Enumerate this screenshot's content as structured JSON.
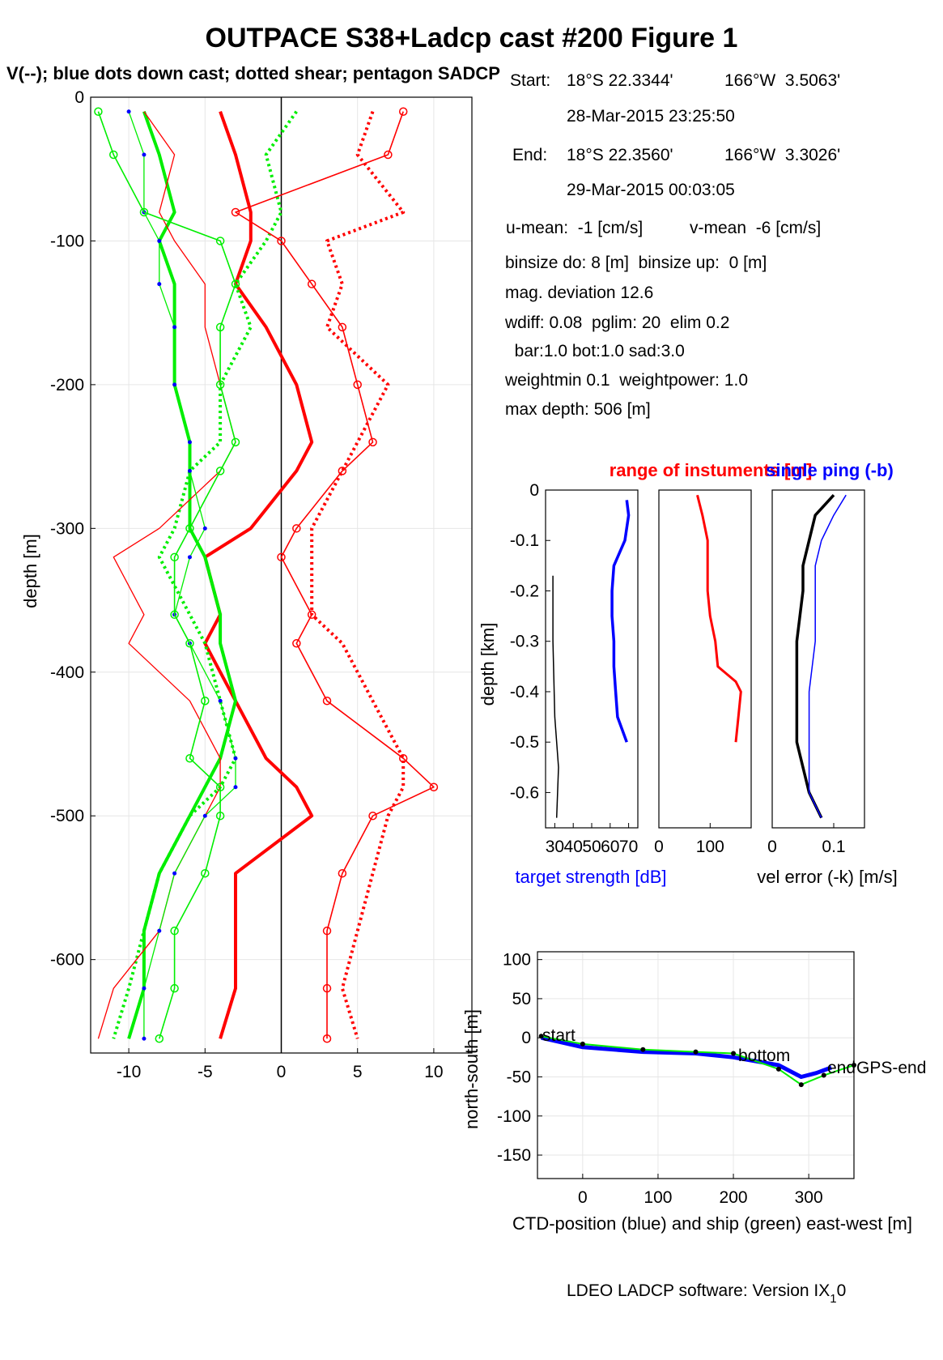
{
  "title": "OUTPACE S38+Ladcp cast #200  Figure 1",
  "subtitle": "V(--); blue dots down cast; dotted shear; pentagon SADCP",
  "info": {
    "start_label": "Start:",
    "start_lat": "18°S 22.3344'",
    "start_lon": "166°W  3.5063'",
    "start_time": "28-Mar-2015 23:25:50",
    "end_label": "End:",
    "end_lat": "18°S 22.3560'",
    "end_lon": "166°W  3.3026'",
    "end_time": "29-Mar-2015 00:03:05",
    "u_mean": "u-mean:  -1 [cm/s]",
    "v_mean": "v-mean  -6 [cm/s]",
    "binsize": "binsize do: 8 [m]  binsize up:  0 [m]",
    "mag_dev": "mag. deviation 12.6",
    "wdiff": "wdiff: 0.08  pglim: 20  elim 0.2",
    "weights": "  bar:1.0 bot:1.0 sad:3.0",
    "weightmin": "weightmin 0.1  weightpower: 1.0",
    "max_depth": "max depth: 506 [m]"
  },
  "footer": "LDEO LADCP software: Version IX",
  "footer_sub": "1",
  "footer_tail": "0",
  "colors": {
    "red": "#ff0000",
    "green": "#00ee00",
    "blue": "#0000ff",
    "black": "#000000",
    "grid": "#e6e6e6"
  },
  "chart_data": [
    {
      "type": "line",
      "id": "velocity_profile",
      "xlabel": "",
      "ylabel": "depth [m]",
      "xlim": [
        -12.5,
        12.5
      ],
      "ylim": [
        -665,
        0
      ],
      "xticks": [
        -10,
        -5,
        0,
        5,
        10
      ],
      "yticks": [
        0,
        -100,
        -200,
        -300,
        -400,
        -500,
        -600
      ],
      "grid": true,
      "depth": [
        -10,
        -40,
        -80,
        -100,
        -130,
        -160,
        -200,
        -240,
        -260,
        -300,
        -320,
        -360,
        -380,
        -420,
        -460,
        -480,
        -500,
        -540,
        -580,
        -620,
        -655
      ],
      "series": [
        {
          "name": "U",
          "color": "red",
          "style": "thick",
          "x": [
            -4,
            -3,
            -2,
            -2,
            -3,
            -1,
            1,
            2,
            1,
            -2,
            -5,
            -4,
            -5,
            -3,
            -1,
            1,
            2,
            -3,
            -3,
            -3,
            -4
          ]
        },
        {
          "name": "V",
          "color": "green",
          "style": "thick",
          "x": [
            -9,
            -8,
            -7,
            -8,
            -7,
            -7,
            -7,
            -6,
            -6,
            -6,
            -5,
            -4,
            -4,
            -3,
            -4,
            -5,
            -6,
            -8,
            -9,
            -9,
            -10
          ]
        },
        {
          "name": "U shear",
          "color": "red",
          "style": "dotted",
          "x": [
            6,
            5,
            8,
            3,
            4,
            3,
            7,
            5,
            4,
            2,
            2,
            2,
            4,
            6,
            8,
            8,
            7,
            6,
            5,
            4,
            5
          ]
        },
        {
          "name": "V shear",
          "color": "green",
          "style": "dotted",
          "x": [
            1,
            -1,
            0,
            -1,
            -3,
            -2,
            -4,
            -4,
            -6,
            -7,
            -8,
            -6,
            -5,
            -4,
            -3,
            -4,
            -6,
            -8,
            -9,
            -10,
            -11
          ]
        },
        {
          "name": "U down",
          "color": "red",
          "style": "thin",
          "x": [
            -9,
            -7,
            -8,
            -7,
            -5,
            -5,
            -4,
            -3,
            -4,
            -8,
            -11,
            -9,
            -10,
            -6,
            -4,
            -4,
            -5,
            -7,
            -8,
            -11,
            -12
          ]
        },
        {
          "name": "V down",
          "color": "green",
          "style": "thin",
          "x": [
            -10,
            -9,
            -9,
            -8,
            -8,
            -7,
            -7,
            -6,
            -6,
            -5,
            -6,
            -7,
            -6,
            -4,
            -3,
            -3,
            -5,
            -7,
            -8,
            -9,
            -9
          ]
        },
        {
          "name": "U SADCP",
          "color": "red",
          "style": "star",
          "x": [
            8,
            7,
            -3,
            0,
            2,
            4,
            5,
            6,
            4,
            1,
            0,
            2,
            1,
            3,
            8,
            10,
            6,
            4,
            3,
            3,
            3
          ]
        },
        {
          "name": "V SADCP",
          "color": "green",
          "style": "star",
          "x": [
            -12,
            -11,
            -9,
            -4,
            -3,
            -4,
            -4,
            -3,
            -4,
            -6,
            -7,
            -7,
            -6,
            -5,
            -6,
            -4,
            -4,
            -5,
            -7,
            -7,
            -8
          ]
        }
      ]
    },
    {
      "type": "line",
      "id": "target_strength",
      "xlabel": "target strength [dB]",
      "ylabel": "depth [km]",
      "xlim": [
        25,
        75
      ],
      "ylim": [
        -0.67,
        0
      ],
      "xticks": [
        30,
        40,
        50,
        60,
        70
      ],
      "yticks": [
        0,
        -0.1,
        -0.2,
        -0.3,
        -0.4,
        -0.5,
        -0.6
      ],
      "depth_km": [
        -0.02,
        -0.05,
        -0.1,
        -0.15,
        -0.2,
        -0.25,
        -0.3,
        -0.35,
        -0.4,
        -0.45,
        -0.5
      ],
      "series": [
        {
          "name": "target strength",
          "color": "blue",
          "values": [
            69,
            70,
            68,
            62,
            61,
            61,
            62,
            62,
            63,
            64,
            69
          ]
        },
        {
          "name": "noise",
          "color": "black",
          "depth_km": [
            -0.17,
            -0.3,
            -0.45,
            -0.55,
            -0.65
          ],
          "values": [
            29,
            29,
            30,
            32,
            31
          ]
        }
      ]
    },
    {
      "type": "line",
      "id": "range_of_instruments",
      "xlabel": "",
      "title": "range of instuments [m]",
      "xlim": [
        0,
        180
      ],
      "xticks": [
        0,
        100
      ],
      "depth_km": [
        -0.01,
        -0.05,
        -0.1,
        -0.15,
        -0.2,
        -0.25,
        -0.3,
        -0.35,
        -0.38,
        -0.4,
        -0.45,
        -0.5
      ],
      "series": [
        {
          "name": "range",
          "color": "red",
          "values": [
            75,
            85,
            95,
            95,
            95,
            100,
            110,
            115,
            150,
            160,
            155,
            150
          ]
        }
      ]
    },
    {
      "type": "line",
      "id": "velocity_error",
      "xlabel": "vel error (-k) [m/s]",
      "title": "single ping (-b)",
      "xlim": [
        0,
        0.15
      ],
      "xticks": [
        0,
        0.1
      ],
      "depth_km": [
        -0.01,
        -0.05,
        -0.1,
        -0.15,
        -0.2,
        -0.3,
        -0.4,
        -0.5,
        -0.6,
        -0.65
      ],
      "series": [
        {
          "name": "vel error",
          "color": "black",
          "values": [
            0.1,
            0.07,
            0.06,
            0.05,
            0.05,
            0.04,
            0.04,
            0.04,
            0.06,
            0.08
          ]
        },
        {
          "name": "single ping",
          "color": "blue",
          "values": [
            0.12,
            0.1,
            0.08,
            0.07,
            0.07,
            0.07,
            0.06,
            0.06,
            0.06,
            0.08
          ]
        }
      ]
    },
    {
      "type": "line",
      "id": "position",
      "xlabel": "CTD-position (blue) and ship (green) east-west [m]",
      "ylabel": "north-south [m]",
      "xlim": [
        -60,
        360
      ],
      "ylim": [
        -180,
        110
      ],
      "xticks": [
        0,
        100,
        200,
        300
      ],
      "yticks": [
        100,
        50,
        0,
        -50,
        -100,
        -150
      ],
      "labels": [
        "start",
        "bottom",
        "end",
        "GPS-end"
      ],
      "series": [
        {
          "name": "CTD",
          "color": "blue",
          "x": [
            -55,
            0,
            80,
            150,
            200,
            260,
            290,
            310,
            330
          ],
          "y": [
            0,
            -12,
            -18,
            -20,
            -25,
            -35,
            -50,
            -45,
            -38
          ]
        },
        {
          "name": "ship",
          "color": "green",
          "x": [
            -55,
            0,
            80,
            150,
            200,
            260,
            290,
            320,
            360
          ],
          "y": [
            2,
            -8,
            -15,
            -18,
            -20,
            -40,
            -60,
            -48,
            -35
          ]
        }
      ]
    }
  ]
}
